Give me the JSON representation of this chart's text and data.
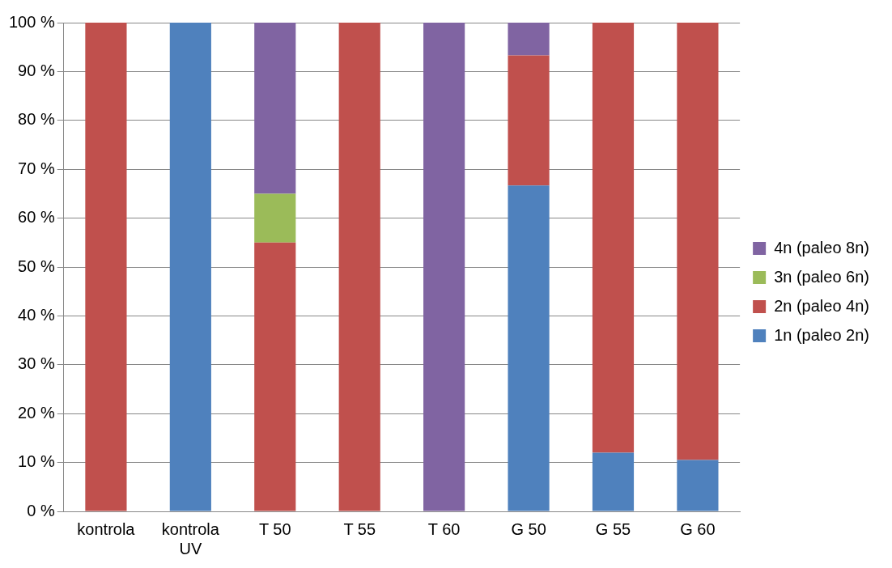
{
  "chart_data": {
    "type": "bar",
    "stacked": true,
    "categories": [
      "kontrola",
      "kontrola UV",
      "T 50",
      "T 55",
      "T 60",
      "G 50",
      "G 55",
      "G 60"
    ],
    "series": [
      {
        "name": "1n (paleo 2n)",
        "color": "#4f81bd",
        "values": [
          0,
          100,
          0,
          0,
          0,
          66.7,
          12,
          10.5
        ]
      },
      {
        "name": "2n (paleo 4n)",
        "color": "#c0504d",
        "values": [
          100,
          0,
          55,
          100,
          0,
          26.6,
          88,
          89.5
        ]
      },
      {
        "name": "3n (paleo 6n)",
        "color": "#9bbb59",
        "values": [
          0,
          0,
          10,
          0,
          0,
          0,
          0,
          0
        ]
      },
      {
        "name": "4n (paleo 8n)",
        "color": "#8064a2",
        "values": [
          0,
          0,
          35,
          0,
          100,
          6.7,
          0,
          0
        ]
      }
    ],
    "ylim": [
      0,
      100
    ],
    "yticks": [
      {
        "value": 0,
        "label": "0 %"
      },
      {
        "value": 10,
        "label": "10 %"
      },
      {
        "value": 20,
        "label": "20 %"
      },
      {
        "value": 30,
        "label": "30 %"
      },
      {
        "value": 40,
        "label": "40 %"
      },
      {
        "value": 50,
        "label": "50 %"
      },
      {
        "value": 60,
        "label": "60 %"
      },
      {
        "value": 70,
        "label": "70 %"
      },
      {
        "value": 80,
        "label": "80 %"
      },
      {
        "value": 90,
        "label": "90 %"
      },
      {
        "value": 100,
        "label": "100 %"
      }
    ],
    "grid": "y",
    "legend": "right"
  }
}
